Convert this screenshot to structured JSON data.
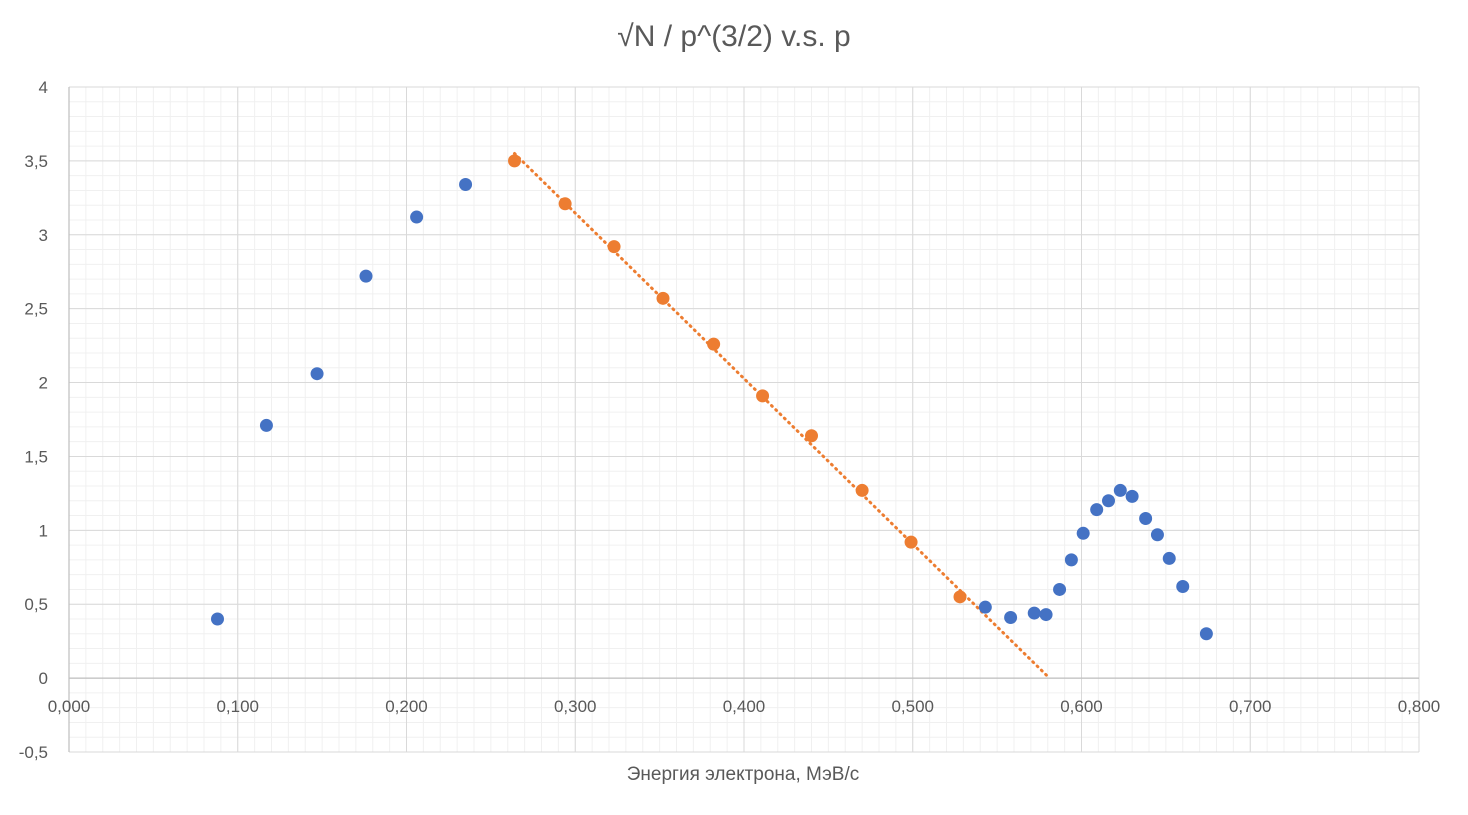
{
  "chart_data": {
    "type": "scatter",
    "title": "√N / p^(3/2)  v.s.  p",
    "xlabel": "Энергия электрона, МэВ/с",
    "ylabel": "",
    "xlim": [
      0,
      0.8
    ],
    "ylim": [
      -0.5,
      4
    ],
    "x_ticks": [
      "0,000",
      "0,100",
      "0,200",
      "0,300",
      "0,400",
      "0,500",
      "0,600",
      "0,700",
      "0,800"
    ],
    "y_ticks": [
      "-0,5",
      "0",
      "0,5",
      "1",
      "1,5",
      "2",
      "2,5",
      "3",
      "3,5",
      "4"
    ],
    "grid": true,
    "legend": "none",
    "series": [
      {
        "color": "#4472c4",
        "x": [
          0.088,
          0.117,
          0.147,
          0.176,
          0.206,
          0.235,
          0.543,
          0.558,
          0.572,
          0.579,
          0.587,
          0.594,
          0.601,
          0.609,
          0.616,
          0.623,
          0.63,
          0.638,
          0.645,
          0.652,
          0.66,
          0.674
        ],
        "y": [
          0.4,
          1.71,
          2.06,
          2.72,
          3.12,
          3.34,
          0.48,
          0.41,
          0.44,
          0.43,
          0.6,
          0.8,
          0.98,
          1.14,
          1.2,
          1.27,
          1.23,
          1.08,
          0.97,
          0.81,
          0.62,
          0.3
        ]
      },
      {
        "color": "#ed7d31",
        "x": [
          0.264,
          0.294,
          0.323,
          0.352,
          0.382,
          0.411,
          0.44,
          0.47,
          0.499,
          0.528
        ],
        "y": [
          3.5,
          3.21,
          2.92,
          2.57,
          2.26,
          1.91,
          1.64,
          1.27,
          0.92,
          0.55
        ]
      }
    ],
    "trendline": {
      "type": "linear",
      "style": "dotted",
      "color": "#ed7d31",
      "x": [
        0.264,
        0.581
      ],
      "y": [
        3.55,
        0.0
      ]
    }
  }
}
